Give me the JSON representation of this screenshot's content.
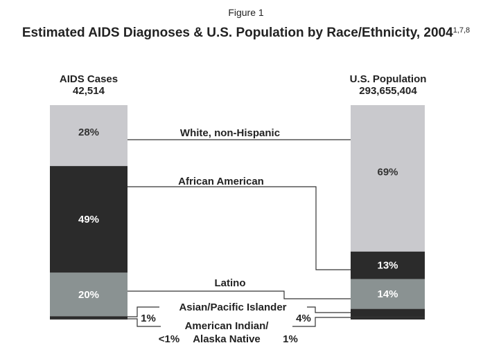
{
  "chart_data": {
    "type": "bar",
    "subtitle": "Figure 1",
    "title": "Estimated AIDS Diagnoses & U.S. Population by Race/Ethnicity, 2004",
    "title_superscript": "1,7,8",
    "categories": [
      "White, non-Hispanic",
      "African American",
      "Latino",
      "Asian/Pacific Islander",
      "American Indian/ Alaska Native"
    ],
    "category_labels": {
      "line1": "American Indian/",
      "line2": "Alaska Native"
    },
    "series": [
      {
        "name": "AIDS Cases",
        "total": "42,514",
        "values": [
          28,
          49,
          20,
          1,
          0.5
        ],
        "labels": [
          "28%",
          "49%",
          "20%",
          "1%",
          "<1%"
        ]
      },
      {
        "name": "U.S. Population",
        "total": "293,655,404",
        "values": [
          69,
          13,
          14,
          4,
          1
        ],
        "labels": [
          "69%",
          "13%",
          "14%",
          "4%",
          "1%"
        ]
      }
    ],
    "colors": [
      "#c9c9cd",
      "#2b2b2b",
      "#8a9292",
      "#2b2b2b",
      "#2b2b2b"
    ],
    "label_colors": [
      "#333333",
      "#ffffff",
      "#ffffff"
    ]
  }
}
